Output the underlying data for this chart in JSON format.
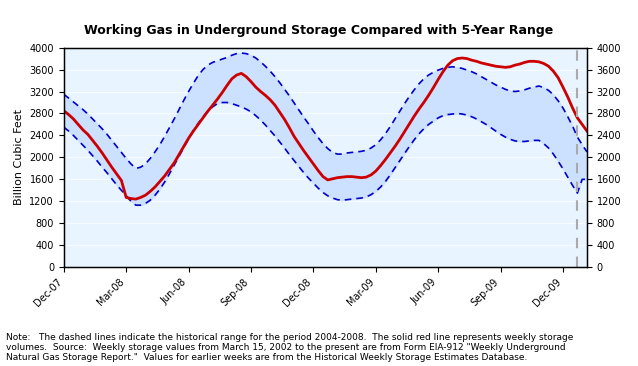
{
  "title": "Working Gas in Underground Storage Compared with 5-Year Range",
  "ylabel": "Billion Cubic Feet",
  "ylim": [
    0,
    4000
  ],
  "yticks": [
    0,
    400,
    800,
    1200,
    1600,
    2000,
    2400,
    2800,
    3200,
    3600,
    4000
  ],
  "background_color": "#ddeeff",
  "plot_bg": "#ddeeff",
  "note_text": "Note:   The dashed lines indicate the historical range for the period 2004-2008.  The solid red line represents weekly storage\nvolumes.  Source:  Weekly storage values from March 15, 2002 to the present are from Form EIA-912 \"Weekly Underground\nNatural Gas Storage Report.\"  Values for earlier weeks are from the Historical Weekly Storage Estimates Database.",
  "x_tick_labels": [
    "Dec-07",
    "Mar-08",
    "Jun-08",
    "Sep-08",
    "Dec-08",
    "Mar-09",
    "Jun-09",
    "Sep-09",
    "Dec-09"
  ],
  "x_tick_positions": [
    0,
    13,
    26,
    39,
    52,
    65,
    78,
    91,
    104
  ],
  "vertical_line_x": 107,
  "weeks": 110,
  "red_line": [
    2850,
    2780,
    2700,
    2600,
    2500,
    2420,
    2310,
    2200,
    2080,
    1950,
    1820,
    1700,
    1580,
    1270,
    1250,
    1240,
    1270,
    1310,
    1380,
    1460,
    1560,
    1660,
    1780,
    1900,
    2050,
    2200,
    2350,
    2480,
    2600,
    2720,
    2840,
    2950,
    3060,
    3180,
    3310,
    3430,
    3500,
    3530,
    3470,
    3380,
    3280,
    3200,
    3130,
    3050,
    2950,
    2820,
    2690,
    2540,
    2380,
    2250,
    2120,
    2000,
    1880,
    1760,
    1650,
    1590,
    1610,
    1630,
    1640,
    1650,
    1650,
    1640,
    1630,
    1640,
    1680,
    1750,
    1850,
    1960,
    2080,
    2200,
    2330,
    2470,
    2610,
    2750,
    2880,
    3000,
    3130,
    3270,
    3420,
    3560,
    3680,
    3760,
    3800,
    3810,
    3800,
    3770,
    3750,
    3720,
    3700,
    3680,
    3660,
    3650,
    3640,
    3650,
    3680,
    3700,
    3730,
    3750,
    3750,
    3740,
    3710,
    3660,
    3570,
    3450,
    3280,
    3100,
    2900,
    2720,
    2600,
    2480
  ],
  "upper_dashed": [
    3150,
    3080,
    3010,
    2940,
    2870,
    2790,
    2700,
    2610,
    2520,
    2420,
    2310,
    2200,
    2090,
    1980,
    1880,
    1800,
    1820,
    1880,
    1980,
    2100,
    2230,
    2380,
    2540,
    2700,
    2870,
    3040,
    3200,
    3350,
    3490,
    3600,
    3680,
    3730,
    3760,
    3790,
    3820,
    3860,
    3890,
    3900,
    3890,
    3860,
    3810,
    3740,
    3660,
    3570,
    3470,
    3360,
    3240,
    3120,
    2990,
    2860,
    2730,
    2610,
    2480,
    2360,
    2250,
    2160,
    2090,
    2060,
    2060,
    2080,
    2090,
    2100,
    2110,
    2130,
    2170,
    2230,
    2320,
    2430,
    2560,
    2700,
    2840,
    2980,
    3110,
    3230,
    3340,
    3430,
    3500,
    3550,
    3590,
    3620,
    3640,
    3650,
    3640,
    3620,
    3590,
    3560,
    3520,
    3470,
    3420,
    3370,
    3320,
    3280,
    3240,
    3210,
    3200,
    3210,
    3230,
    3260,
    3280,
    3300,
    3270,
    3220,
    3140,
    3030,
    2900,
    2740,
    2570,
    2370,
    2230,
    2100
  ],
  "lower_dashed": [
    2550,
    2480,
    2400,
    2310,
    2220,
    2130,
    2030,
    1930,
    1820,
    1720,
    1610,
    1500,
    1400,
    1300,
    1200,
    1130,
    1130,
    1160,
    1220,
    1310,
    1420,
    1550,
    1700,
    1860,
    2020,
    2180,
    2340,
    2490,
    2620,
    2740,
    2840,
    2920,
    2980,
    3000,
    3000,
    2980,
    2950,
    2920,
    2880,
    2830,
    2760,
    2680,
    2590,
    2490,
    2390,
    2280,
    2170,
    2050,
    1940,
    1830,
    1720,
    1620,
    1530,
    1440,
    1360,
    1300,
    1260,
    1230,
    1220,
    1230,
    1240,
    1250,
    1260,
    1280,
    1320,
    1380,
    1460,
    1560,
    1680,
    1810,
    1940,
    2070,
    2200,
    2320,
    2430,
    2520,
    2600,
    2660,
    2720,
    2760,
    2780,
    2790,
    2800,
    2790,
    2770,
    2740,
    2700,
    2650,
    2600,
    2540,
    2480,
    2420,
    2370,
    2330,
    2300,
    2290,
    2290,
    2300,
    2310,
    2310,
    2250,
    2170,
    2060,
    1930,
    1790,
    1640,
    1490,
    1350,
    1600,
    1600
  ],
  "line_color_red": "#cc0000",
  "line_color_dashed": "#0000cc",
  "vline_color": "#aaaaaa",
  "fill_color": "#cce0ff"
}
